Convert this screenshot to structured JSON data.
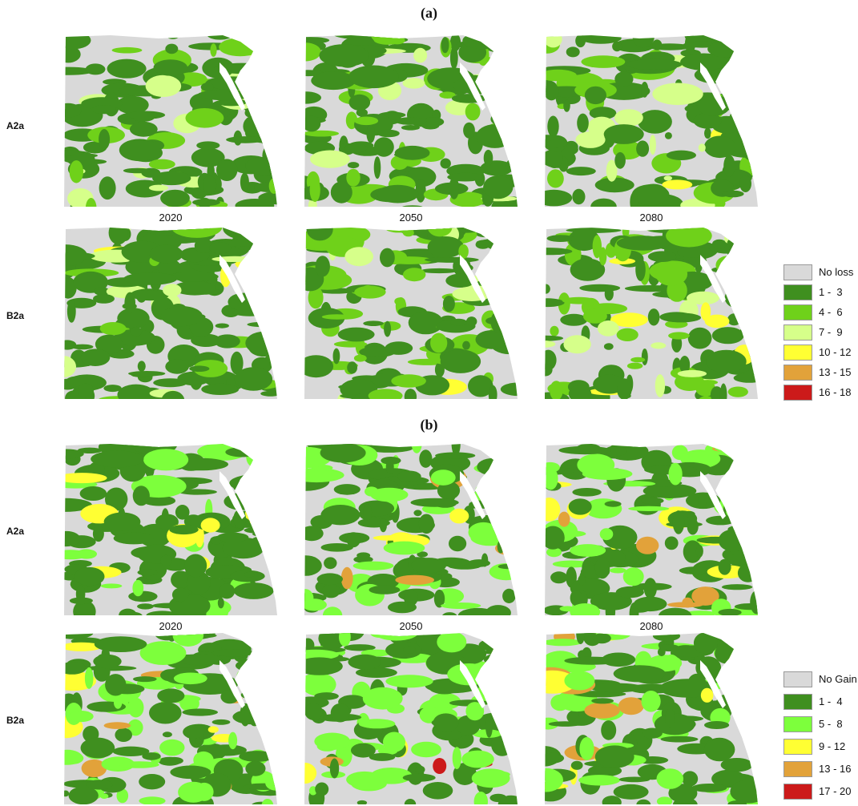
{
  "panels": [
    {
      "label": "(a)",
      "rows": [
        "A2a",
        "B2a"
      ],
      "years": [
        "2020",
        "2050",
        "2080"
      ],
      "legend": [
        {
          "label": "No loss",
          "color": "#d9d9d9"
        },
        {
          "label": "1 -  3",
          "color": "#3f8f1f"
        },
        {
          "label": "4 -  6",
          "color": "#6fd11a"
        },
        {
          "label": "7 -  9",
          "color": "#d6ff8a"
        },
        {
          "label": "10 - 12",
          "color": "#ffff33"
        },
        {
          "label": "13 - 15",
          "color": "#e2a23a"
        },
        {
          "label": "16 - 18",
          "color": "#cc1a1a"
        }
      ]
    },
    {
      "label": "(b)",
      "rows": [
        "A2a",
        "B2a"
      ],
      "years": [
        "2020",
        "2050",
        "2080"
      ],
      "legend": [
        {
          "label": "No Gain",
          "color": "#d9d9d9"
        },
        {
          "label": "1 -  4",
          "color": "#3f8f1f"
        },
        {
          "label": "5 -  8",
          "color": "#7dff3c"
        },
        {
          "label": "9 - 12",
          "color": "#ffff33"
        },
        {
          "label": "13 - 16",
          "color": "#e2a23a"
        },
        {
          "label": "17 - 20",
          "color": "#cc1a1a"
        }
      ]
    }
  ]
}
